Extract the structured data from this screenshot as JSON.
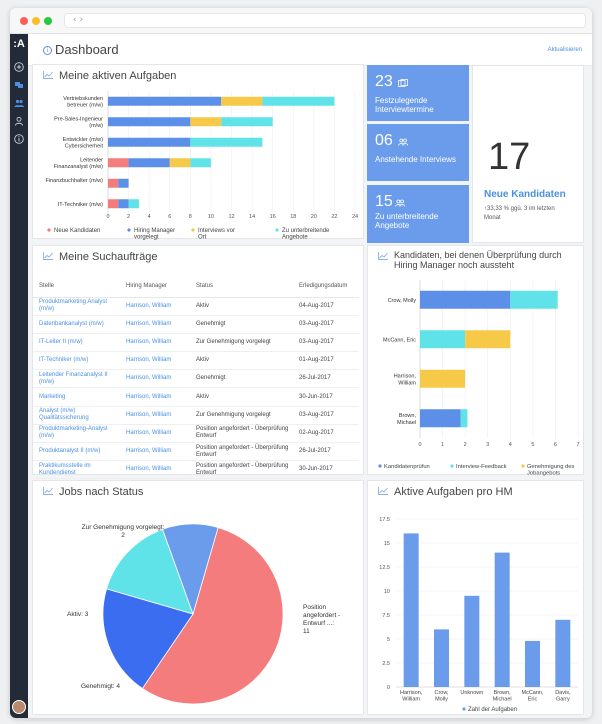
{
  "header": {
    "title": "Dashboard",
    "refresh_label": "Aktualisieren"
  },
  "sidebar": {
    "logo": ":A"
  },
  "tasks": {
    "title": "Meine aktiven Aufgaben",
    "chart_data": {
      "type": "bar",
      "orientation": "horizontal",
      "stacked": true,
      "categories": [
        "Vertriebskunden betreuer (m/w)",
        "Pre-Sales-Ingenieur (m/w)",
        "Entwickler (m/w) Cybersicherheit",
        "Leitender Finanzanalyst (m/w)",
        "Finanzbuchhalter (m/w)",
        "IT-Techniker (m/w)"
      ],
      "series": [
        {
          "name": "Neue Kandidaten",
          "color": "#f47c7c",
          "values": [
            0,
            0,
            0,
            2,
            1,
            1
          ]
        },
        {
          "name": "Hiring Manager vorgelegt",
          "color": "#5b8fe8",
          "values": [
            11,
            8,
            8,
            4,
            1,
            1
          ]
        },
        {
          "name": "Interviews vor Ort",
          "color": "#f7c948",
          "values": [
            4,
            3,
            0,
            2,
            0,
            0
          ]
        },
        {
          "name": "Zu unterbreitende Angebote",
          "color": "#5fe3e8",
          "values": [
            7,
            5,
            7,
            2,
            0,
            1
          ]
        }
      ],
      "xlim": [
        0,
        24
      ],
      "xticks": [
        "0",
        "2",
        "4",
        "6",
        "8",
        "10",
        "12",
        "14",
        "16",
        "18",
        "20",
        "22",
        "24"
      ]
    }
  },
  "kpis": [
    {
      "value": "23",
      "label": "Festzulegende Interviewtermine",
      "icon": "calendar-icon"
    },
    {
      "value": "06",
      "label": "Anstehende Interviews",
      "icon": "people-icon"
    },
    {
      "value": "15",
      "label": "Zu unterbreitende Angebote",
      "icon": "people-icon"
    }
  ],
  "new_candidates": {
    "value": "17",
    "label": "Neue Kandidaten",
    "change": "↑33,33 % ggü. 3 im letzten Monat"
  },
  "jobs": {
    "title": "Meine Suchaufträge",
    "columns": [
      "Stelle",
      "Hiring Manager",
      "Status",
      "Erledigungsdatum"
    ],
    "rows": [
      [
        "Produktmarketing Analyst (m/w)",
        "Harrison, William",
        "Aktiv",
        "04-Aug-2017"
      ],
      [
        "Datenbankanalyst (m/w)",
        "Harrison, William",
        "Genehmigt",
        "03-Aug-2017"
      ],
      [
        "IT-Leiter II (m/w)",
        "Harrison, William",
        "Zur Genehmigung vorgelegt",
        "03-Aug-2017"
      ],
      [
        "IT-Techniker (m/w)",
        "Harrison, William",
        "Aktiv",
        "01-Aug-2017"
      ],
      [
        "Leitender Finanzanalyst II (m/w)",
        "Harrison, William",
        "Genehmigt",
        "26-Jul-2017"
      ],
      [
        "Marketing",
        "Harrison, William",
        "Aktiv",
        "30-Jun-2017"
      ],
      [
        "Analyst (m/w) Qualitätssicherung",
        "Harrison, William",
        "Zur Genehmigung vorgelegt",
        "03-Aug-2017"
      ],
      [
        "Produktmarketing-Analyst (m/w)",
        "Harrison, William",
        "Position angefordert - Überprüfung Entwurf",
        "02-Aug-2017"
      ],
      [
        "Produktanalyst II (m/w)",
        "Harrison, William",
        "Position angefordert - Überprüfung Entwurf",
        "26-Jul-2017"
      ],
      [
        "Praktikumsstelle im Kundendienst",
        "Harrison, William",
        "Position angefordert - Überprüfung Entwurf",
        "30-Jun-2017"
      ]
    ]
  },
  "review": {
    "title": "Kandidaten, bei denen Überprüfung durch Hiring Manager noch aussteht",
    "chart_data": {
      "type": "bar",
      "orientation": "horizontal",
      "stacked": true,
      "categories": [
        "Crow, Molly",
        "McCann, Eric",
        "Harrison, William",
        "Brown, Michael"
      ],
      "series": [
        {
          "name": "Kandidatenprüfun",
          "color": "#5b8fe8",
          "values": [
            4,
            0,
            0,
            1.8
          ]
        },
        {
          "name": "Interview-Feedback",
          "color": "#5fe3e8",
          "values": [
            2.1,
            2,
            0,
            0.3
          ]
        },
        {
          "name": "Genehmigung des Jobangebots",
          "color": "#f7c948",
          "values": [
            0,
            2,
            2,
            0
          ]
        }
      ],
      "xlim": [
        0,
        7
      ],
      "xticks": [
        "0",
        "1",
        "2",
        "3",
        "4",
        "5",
        "6",
        "7"
      ]
    }
  },
  "status": {
    "title": "Jobs nach Status",
    "chart_data": {
      "type": "pie",
      "slices": [
        {
          "label": "Position angefordert - Entwurf ...: 11",
          "value": 11,
          "color": "#f47c7c"
        },
        {
          "label": "Genehmigt: 4",
          "value": 4,
          "color": "#3b6df0"
        },
        {
          "label": "Aktiv: 3",
          "value": 3,
          "color": "#5fe3e8"
        },
        {
          "label": "Zur Genehmigung vorgelegt: 2",
          "value": 2,
          "color": "#6b9ceb"
        }
      ]
    }
  },
  "hm": {
    "title": "Aktive Aufgaben pro HM",
    "chart_data": {
      "type": "bar",
      "categories": [
        "Harrison, William",
        "Crow, Molly",
        "Unknown",
        "Brown, Michael",
        "McCann, Eric",
        "Davis, Garry"
      ],
      "values": [
        16,
        6,
        9.5,
        14,
        4.8,
        7
      ],
      "color": "#6b9ceb",
      "ylim": [
        0,
        17.5
      ],
      "yticks": [
        "0",
        "2.5",
        "5",
        "7.5",
        "10",
        "12.5",
        "15",
        "17.5"
      ],
      "legend": "Zahl der Aufgaben"
    }
  }
}
